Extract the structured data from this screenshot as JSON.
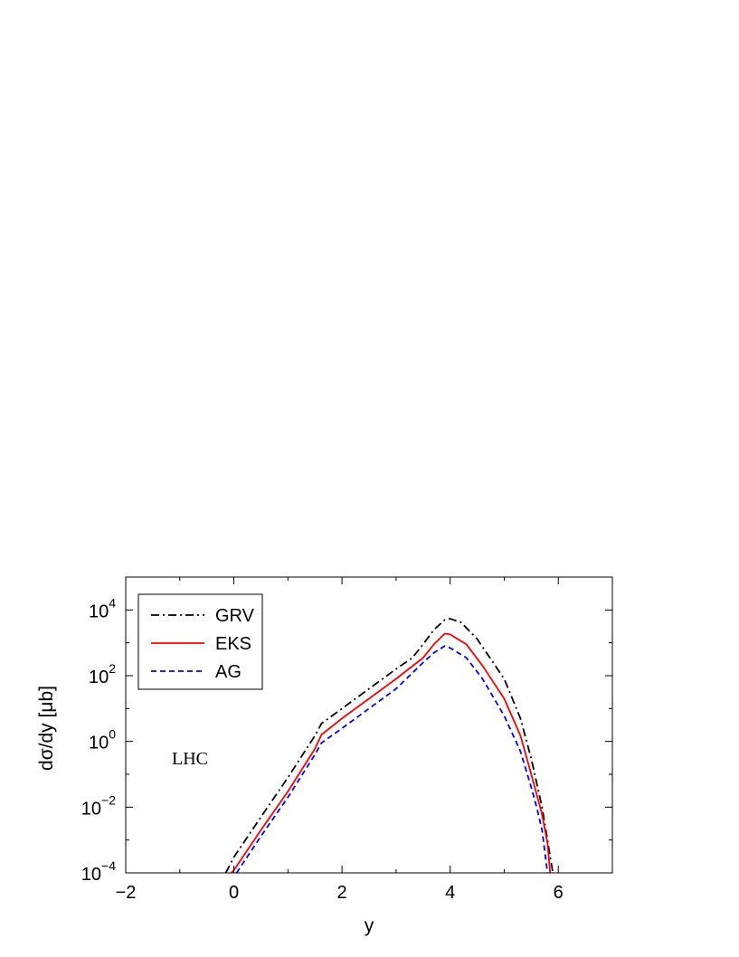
{
  "chart_data": {
    "type": "line",
    "xlabel": "y",
    "ylabel": "dσ/dy [μb]",
    "xlim": [
      -2,
      7
    ],
    "ylim": [
      0.0001,
      100000
    ],
    "yscale": "log",
    "x_ticks": [
      "−2",
      "0",
      "2",
      "4",
      "6"
    ],
    "x_tick_values": [
      -2,
      0,
      2,
      4,
      6
    ],
    "y_ticks": [
      {
        "value": 0.0001,
        "base": "10",
        "exp": "−4"
      },
      {
        "value": 0.01,
        "base": "10",
        "exp": "−2"
      },
      {
        "value": 1,
        "base": "10",
        "exp": "0"
      },
      {
        "value": 100,
        "base": "10",
        "exp": "2"
      },
      {
        "value": 10000,
        "base": "10",
        "exp": "4"
      }
    ],
    "annotation": "LHC",
    "legend_position": "top-left",
    "grid": false,
    "series": [
      {
        "name": "GRV",
        "color": "#000000",
        "dash": "dash-dot",
        "points": [
          [
            -0.15,
            0.0001
          ],
          [
            0,
            0.0003
          ],
          [
            0.5,
            0.005
          ],
          [
            1.0,
            0.08
          ],
          [
            1.5,
            1.5
          ],
          [
            1.62,
            3.5
          ],
          [
            2.0,
            10
          ],
          [
            2.5,
            40
          ],
          [
            3.0,
            160
          ],
          [
            3.3,
            350
          ],
          [
            3.5,
            900
          ],
          [
            3.7,
            2500
          ],
          [
            3.9,
            5000
          ],
          [
            4.0,
            5400
          ],
          [
            4.2,
            4200
          ],
          [
            4.5,
            1300
          ],
          [
            5.0,
            80
          ],
          [
            5.3,
            5
          ],
          [
            5.5,
            0.3
          ],
          [
            5.7,
            0.01
          ],
          [
            5.8,
            0.001
          ],
          [
            5.9,
            0.0001
          ]
        ]
      },
      {
        "name": "EKS",
        "color": "#ff0000",
        "dash": "solid",
        "points": [
          [
            -0.05,
            0.0001
          ],
          [
            0,
            0.00012
          ],
          [
            0.5,
            0.002
          ],
          [
            1.0,
            0.03
          ],
          [
            1.5,
            0.6
          ],
          [
            1.62,
            1.6
          ],
          [
            2.0,
            5
          ],
          [
            2.5,
            20
          ],
          [
            3.0,
            80
          ],
          [
            3.5,
            350
          ],
          [
            3.7,
            900
          ],
          [
            3.9,
            1900
          ],
          [
            4.0,
            1800
          ],
          [
            4.3,
            900
          ],
          [
            4.6,
            200
          ],
          [
            5.0,
            20
          ],
          [
            5.3,
            1.5
          ],
          [
            5.5,
            0.1
          ],
          [
            5.7,
            0.006
          ],
          [
            5.8,
            0.0008
          ],
          [
            5.85,
            0.0001
          ]
        ]
      },
      {
        "name": "AG",
        "color": "#0000ff",
        "dash": "dashed",
        "points": [
          [
            0.05,
            0.0001
          ],
          [
            0.5,
            0.0013
          ],
          [
            1.0,
            0.02
          ],
          [
            1.5,
            0.4
          ],
          [
            1.62,
            0.9
          ],
          [
            2.0,
            2.5
          ],
          [
            2.5,
            10
          ],
          [
            3.0,
            40
          ],
          [
            3.5,
            250
          ],
          [
            3.7,
            500
          ],
          [
            3.9,
            800
          ],
          [
            4.0,
            700
          ],
          [
            4.3,
            350
          ],
          [
            4.6,
            80
          ],
          [
            5.0,
            6
          ],
          [
            5.3,
            0.5
          ],
          [
            5.5,
            0.04
          ],
          [
            5.6,
            0.01
          ],
          [
            5.7,
            0.002
          ],
          [
            5.8,
            0.0001
          ]
        ]
      }
    ]
  }
}
